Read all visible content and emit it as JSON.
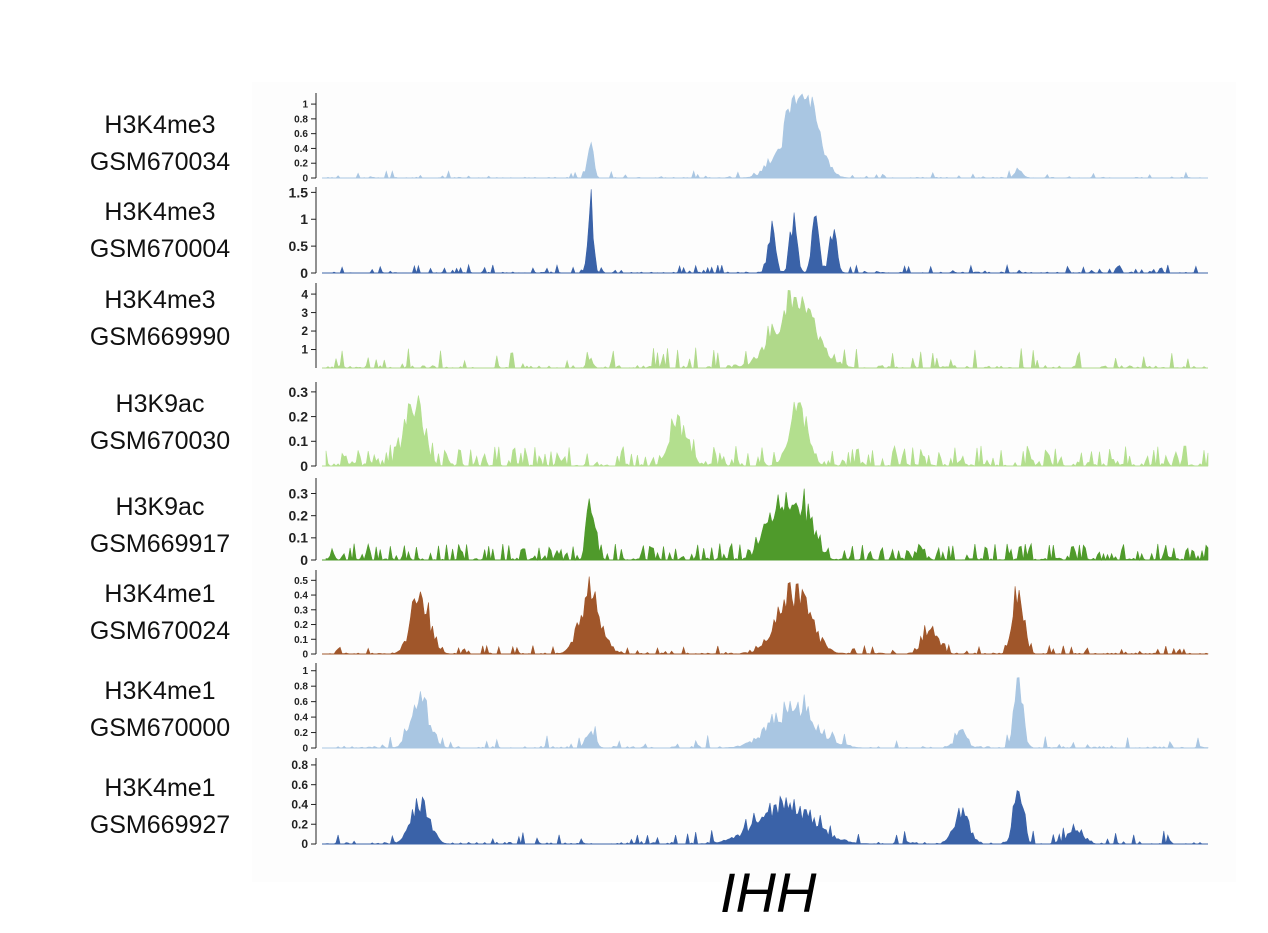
{
  "gene": "IHH",
  "chart_data": {
    "type": "area",
    "title": "",
    "xlabel": "IHH",
    "tracks": [
      {
        "mark": "H3K4me3",
        "sample": "GSM670034",
        "color": "#a9c6e2",
        "ylim": [
          0,
          1.15
        ],
        "yticks": [
          "1",
          "0.8",
          "0.6",
          "0.4",
          "0.2",
          "0"
        ],
        "peaks": [
          [
            0.3,
            0.8,
            0.003
          ],
          [
            0.53,
            0.8,
            0.018
          ],
          [
            0.545,
            0.9,
            0.014
          ],
          [
            0.785,
            0.15,
            0.004
          ]
        ],
        "noise": 0.04,
        "spike": 0.1,
        "seed": 11
      },
      {
        "mark": "H3K4me3",
        "sample": "GSM670004",
        "color": "#3a62a8",
        "ylim": [
          0,
          1.6
        ],
        "yticks": [
          "1.5",
          "1",
          "0.5",
          "0"
        ],
        "peaks": [
          [
            0.3,
            1.55,
            0.003
          ],
          [
            0.505,
            1.1,
            0.004
          ],
          [
            0.53,
            1.2,
            0.004
          ],
          [
            0.555,
            1.2,
            0.004
          ],
          [
            0.575,
            1.1,
            0.004
          ]
        ],
        "noise": 0.05,
        "spike": 0.12,
        "seed": 23
      },
      {
        "mark": "H3K4me3",
        "sample": "GSM669990",
        "color": "#b0d98a",
        "ylim": [
          0,
          4.6
        ],
        "yticks": [
          "4",
          "3",
          "2",
          "1"
        ],
        "peaks": [
          [
            0.53,
            4.5,
            0.022
          ],
          [
            0.3,
            0.5,
            0.003
          ]
        ],
        "noise": 0.12,
        "spike": 0.1,
        "seed": 37
      },
      {
        "mark": "H3K9ac",
        "sample": "GSM670030",
        "color": "#b3df8e",
        "ylim": [
          0,
          0.34
        ],
        "yticks": [
          "0.3",
          "0.2",
          "0.1",
          "0"
        ],
        "peaks": [
          [
            0.1,
            0.32,
            0.01
          ],
          [
            0.535,
            0.27,
            0.01
          ],
          [
            0.4,
            0.2,
            0.01
          ]
        ],
        "noise": 0.12,
        "spike": 0.35,
        "seed": 41
      },
      {
        "mark": "H3K9ac",
        "sample": "GSM669917",
        "color": "#4f9a2b",
        "ylim": [
          0,
          0.37
        ],
        "yticks": [
          "0.3",
          "0.2",
          "0.1",
          "0"
        ],
        "peaks": [
          [
            0.3,
            0.36,
            0.004
          ],
          [
            0.51,
            0.3,
            0.012
          ],
          [
            0.54,
            0.3,
            0.012
          ]
        ],
        "noise": 0.1,
        "spike": 0.35,
        "seed": 53
      },
      {
        "mark": "H3K4me1",
        "sample": "GSM670024",
        "color": "#a0562a",
        "ylim": [
          0,
          0.57
        ],
        "yticks": [
          "0.5",
          "0.4",
          "0.3",
          "0.2",
          "0.1",
          "0"
        ],
        "peaks": [
          [
            0.107,
            0.5,
            0.01
          ],
          [
            0.3,
            0.5,
            0.012
          ],
          [
            0.53,
            0.55,
            0.018
          ],
          [
            0.685,
            0.22,
            0.008
          ],
          [
            0.785,
            0.55,
            0.006
          ]
        ],
        "noise": 0.05,
        "spike": 0.15,
        "seed": 67
      },
      {
        "mark": "H3K4me1",
        "sample": "GSM670000",
        "color": "#a9c6e2",
        "ylim": [
          0,
          1.1
        ],
        "yticks": [
          "1",
          "0.8",
          "0.6",
          "0.4",
          "0.2",
          "0"
        ],
        "peaks": [
          [
            0.107,
            0.75,
            0.01
          ],
          [
            0.3,
            0.3,
            0.005
          ],
          [
            0.53,
            0.65,
            0.025
          ],
          [
            0.72,
            0.3,
            0.006
          ],
          [
            0.785,
            1.05,
            0.005
          ]
        ],
        "noise": 0.08,
        "spike": 0.12,
        "seed": 79
      },
      {
        "mark": "H3K4me1",
        "sample": "GSM669927",
        "color": "#3a62a8",
        "ylim": [
          0,
          0.87
        ],
        "yticks": [
          "0.8",
          "0.6",
          "0.4",
          "0.2",
          "0"
        ],
        "peaks": [
          [
            0.107,
            0.57,
            0.01
          ],
          [
            0.52,
            0.5,
            0.03
          ],
          [
            0.72,
            0.45,
            0.008
          ],
          [
            0.785,
            0.85,
            0.005
          ],
          [
            0.85,
            0.2,
            0.008
          ]
        ],
        "noise": 0.08,
        "spike": 0.12,
        "seed": 97
      }
    ]
  }
}
